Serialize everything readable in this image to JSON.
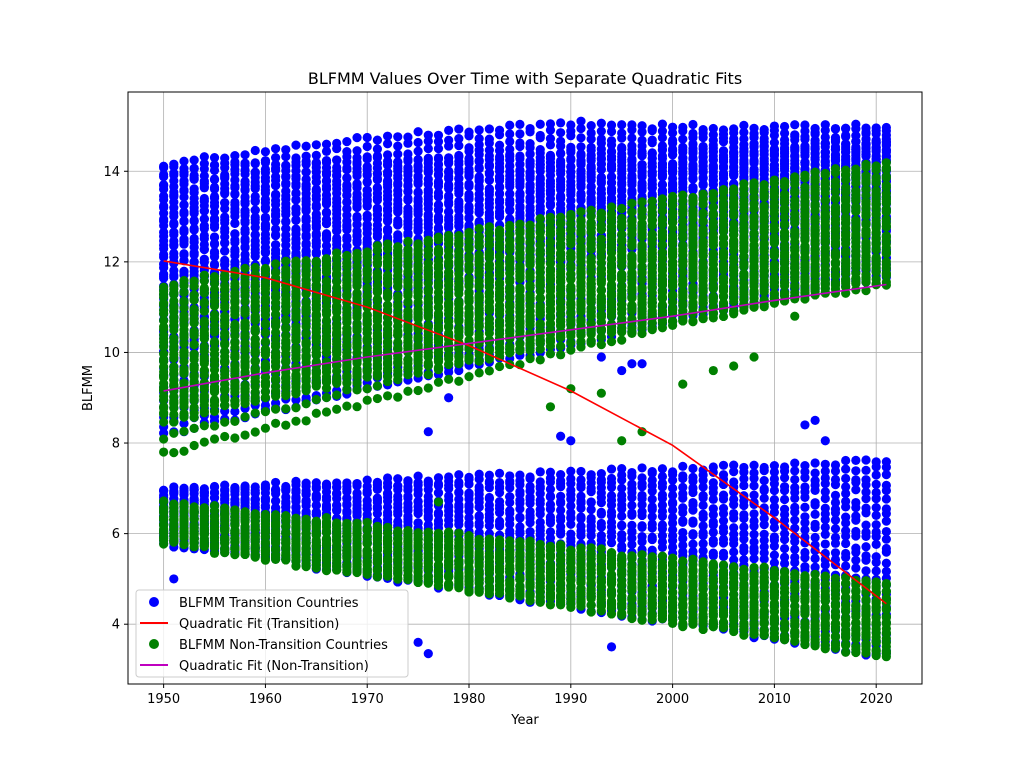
{
  "chart_data": {
    "type": "scatter",
    "title": "BLFMM Values Over Time with Separate Quadratic Fits",
    "xlabel": "Year",
    "ylabel": "BLFMM",
    "xlim": [
      1946.5,
      2024.5
    ],
    "ylim": [
      2.68,
      15.75
    ],
    "xticks": [
      1950,
      1960,
      1970,
      1980,
      1990,
      2000,
      2010,
      2020
    ],
    "yticks": [
      4,
      6,
      8,
      10,
      12,
      14
    ],
    "grid": true,
    "legend_position": "lower-left",
    "years": {
      "start": 1950,
      "end": 2021
    },
    "series": [
      {
        "name": "BLFMM Transition Countries",
        "kind": "scatter",
        "color": "#0000ff",
        "bands": [
          {
            "y_start": [
              8.2,
              14.1
            ],
            "y_end": [
              11.7,
              14.6
            ],
            "density": 34
          },
          {
            "y_start": [
              5.8,
              7.0
            ],
            "y_end": [
              3.3,
              7.6
            ],
            "density": 26
          },
          {
            "y_start": [
              9.8,
              14.1
            ],
            "y_end": [
              13.5,
              15.0
            ],
            "density": 20,
            "peak_year": 1991,
            "peak": [
              12.5,
              15.05
            ]
          }
        ],
        "outliers": [
          {
            "x": 1951,
            "y": 5.0
          },
          {
            "x": 1975,
            "y": 3.6
          },
          {
            "x": 1976,
            "y": 3.35
          },
          {
            "x": 1994,
            "y": 3.5
          },
          {
            "x": 1976,
            "y": 8.25
          },
          {
            "x": 1978,
            "y": 9.0
          },
          {
            "x": 1989,
            "y": 8.15
          },
          {
            "x": 1990,
            "y": 8.05
          },
          {
            "x": 2013,
            "y": 8.4
          },
          {
            "x": 2014,
            "y": 8.5
          },
          {
            "x": 2015,
            "y": 8.05
          },
          {
            "x": 1993,
            "y": 9.9
          },
          {
            "x": 1995,
            "y": 9.6
          },
          {
            "x": 1996,
            "y": 9.75
          },
          {
            "x": 1997,
            "y": 9.75
          }
        ]
      },
      {
        "name": "Quadratic Fit (Transition)",
        "kind": "line",
        "color": "#ff0000",
        "x": [
          1950,
          1960,
          1970,
          1980,
          1990,
          2000,
          2010,
          2021
        ],
        "y": [
          12.02,
          11.65,
          11.0,
          10.15,
          9.15,
          7.95,
          6.35,
          4.45
        ]
      },
      {
        "name": "BLFMM Non-Transition Countries",
        "kind": "scatter",
        "color": "#008000",
        "bands": [
          {
            "y_start": [
              8.6,
              11.5
            ],
            "y_end": [
              11.5,
              14.2
            ],
            "density": 30
          },
          {
            "y_start": [
              5.8,
              6.7
            ],
            "y_end": [
              3.3,
              4.9
            ],
            "density": 22
          },
          {
            "y_start": [
              7.75,
              9.5
            ],
            "y_end": [
              11.8,
              13.4
            ],
            "density": 6
          }
        ],
        "outliers": [
          {
            "x": 1977,
            "y": 6.7
          },
          {
            "x": 1988,
            "y": 8.8
          },
          {
            "x": 1990,
            "y": 9.2
          },
          {
            "x": 1993,
            "y": 9.1
          },
          {
            "x": 1995,
            "y": 8.05
          },
          {
            "x": 1997,
            "y": 8.25
          },
          {
            "x": 2001,
            "y": 9.3
          },
          {
            "x": 1998,
            "y": 5.45
          },
          {
            "x": 2004,
            "y": 9.6
          },
          {
            "x": 2006,
            "y": 9.7
          },
          {
            "x": 2008,
            "y": 9.9
          },
          {
            "x": 2012,
            "y": 10.8
          }
        ]
      },
      {
        "name": "Quadratic Fit (Non-Transition)",
        "kind": "line",
        "color": "#bf00bf",
        "x": [
          1950,
          1960,
          1970,
          1980,
          1990,
          2000,
          2010,
          2021
        ],
        "y": [
          9.15,
          9.55,
          9.9,
          10.2,
          10.5,
          10.8,
          11.15,
          11.5
        ]
      }
    ]
  }
}
